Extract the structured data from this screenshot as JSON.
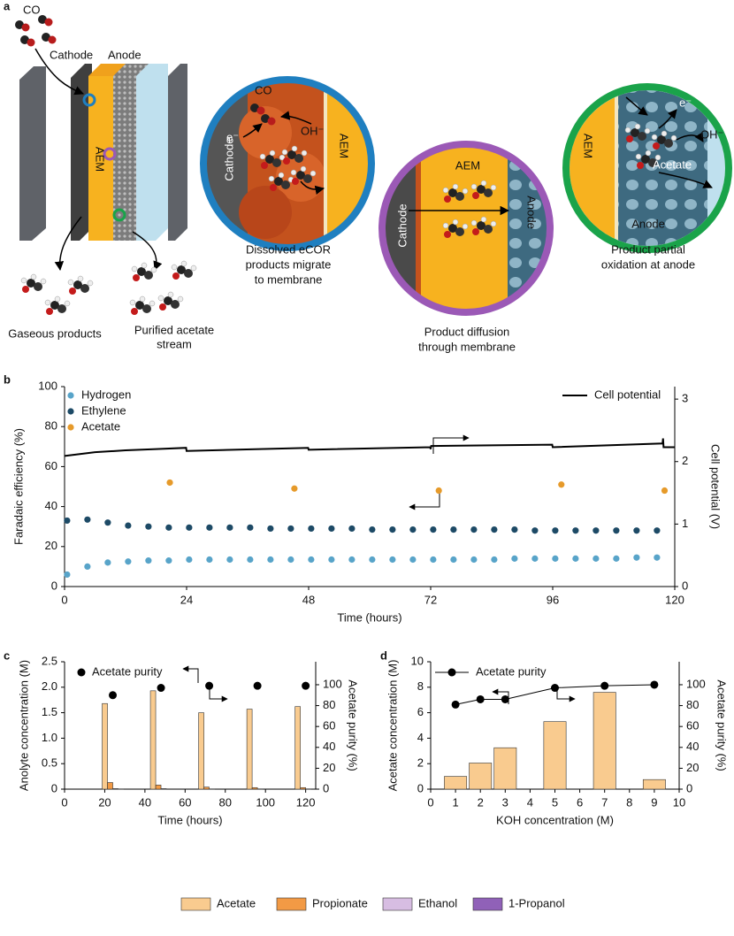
{
  "diagram": {
    "panel_label": "a",
    "molecule": "CO",
    "cathode": "Cathode",
    "anode": "Anode",
    "membrane": "AEM",
    "gas_output": "Gaseous products",
    "liquid_output": [
      "Purified acetate",
      "stream"
    ],
    "insets": [
      {
        "labels": [
          "CO",
          "Cathode",
          "e⁻",
          "OH⁻",
          "AEM"
        ],
        "caption": [
          "Dissolved eCOR",
          "products migrate",
          "to membrane"
        ]
      },
      {
        "labels": [
          "AEM",
          "Cathode",
          "Anode"
        ],
        "caption": [
          "Product diffusion",
          "through membrane"
        ]
      },
      {
        "labels": [
          "AEM",
          "e⁻",
          "OH⁻",
          "Acetate",
          "Anode"
        ],
        "caption": [
          "Product partial",
          "oxidation at anode"
        ]
      }
    ]
  },
  "chart_data": [
    {
      "type": "scatter",
      "panel_label": "b",
      "xlabel": "Time (hours)",
      "ylabel": "Faradaic efficiency (%)",
      "y2label": "Cell potential (V)",
      "xlim": [
        0,
        120
      ],
      "xticks": [
        0,
        24,
        48,
        72,
        96,
        120
      ],
      "ylim": [
        0,
        100
      ],
      "yticks": [
        0,
        20,
        40,
        60,
        80,
        100
      ],
      "y2lim": [
        0,
        3.2
      ],
      "y2ticks": [
        0,
        1,
        2,
        3
      ],
      "series": [
        {
          "name": "Hydrogen",
          "color": "#58a4c9",
          "x": [
            0.5,
            4.5,
            8.5,
            12.5,
            16.5,
            20.5,
            24.5,
            28.5,
            32.5,
            36.5,
            40.5,
            44.5,
            48.5,
            52.5,
            56.5,
            60.5,
            64.5,
            68.5,
            72.5,
            76.5,
            80.5,
            84.5,
            88.5,
            92.5,
            96.5,
            100.5,
            104.5,
            108.5,
            112.5,
            116.5
          ],
          "values": [
            6,
            10,
            12,
            12.5,
            13,
            13,
            13.5,
            13.5,
            13.5,
            13.5,
            13.5,
            13.5,
            13.5,
            13.5,
            13.5,
            13.5,
            13.5,
            13.5,
            13.5,
            13.5,
            13.5,
            13.5,
            14,
            14,
            14,
            14,
            14,
            14,
            14.5,
            14.5
          ]
        },
        {
          "name": "Ethylene",
          "color": "#1d4a66",
          "x": [
            0.5,
            4.5,
            8.5,
            12.5,
            16.5,
            20.5,
            24.5,
            28.5,
            32.5,
            36.5,
            40.5,
            44.5,
            48.5,
            52.5,
            56.5,
            60.5,
            64.5,
            68.5,
            72.5,
            76.5,
            80.5,
            84.5,
            88.5,
            92.5,
            96.5,
            100.5,
            104.5,
            108.5,
            112.5,
            116.5
          ],
          "values": [
            33,
            33.5,
            32,
            30.5,
            30,
            29.5,
            29.5,
            29.5,
            29.5,
            29.5,
            29,
            29,
            29,
            29,
            29,
            28.5,
            28.5,
            28.5,
            28.5,
            28.5,
            28.5,
            28.5,
            28.5,
            28,
            28,
            28,
            28,
            28,
            28,
            28
          ]
        },
        {
          "name": "Acetate",
          "color": "#e69a2a",
          "x": [
            20.7,
            45.2,
            73.6,
            97.7,
            118
          ],
          "values": [
            52,
            49,
            48,
            51,
            48
          ]
        },
        {
          "name": "Cell potential",
          "type": "line",
          "axis": "y2",
          "color": "#000000",
          "x": [
            0,
            6,
            12,
            18,
            23.9,
            24,
            47.9,
            48,
            71.9,
            72,
            72.1,
            95.9,
            96,
            117.6,
            117.7,
            117.8,
            120
          ],
          "values": [
            2.09,
            2.15,
            2.18,
            2.2,
            2.22,
            2.17,
            2.22,
            2.19,
            2.23,
            2.2,
            2.25,
            2.27,
            2.23,
            2.29,
            2.37,
            2.23,
            2.23
          ]
        }
      ]
    },
    {
      "type": "bar",
      "panel_label": "c",
      "xlabel": "Time (hours)",
      "ylabel": "Anolyte concentration (M)",
      "y2label": "Acetate purity (%)",
      "xlim": [
        0,
        125
      ],
      "xticks": [
        0,
        20,
        40,
        60,
        80,
        100,
        120
      ],
      "ylim": [
        0,
        2.5
      ],
      "yticks": [
        0,
        0.5,
        {
          "value": 1,
          "label": "1.0"
        },
        1.5,
        {
          "value": 2,
          "label": "2.0"
        },
        2.5
      ],
      "y2lim": [
        0,
        122
      ],
      "y2ticks": [
        0,
        20,
        40,
        60,
        80,
        100
      ],
      "x": [
        24,
        48,
        72,
        96,
        120
      ],
      "series": [
        {
          "name": "Acetate",
          "color": "#f9cb8f",
          "values": [
            1.68,
            1.93,
            1.5,
            1.57,
            1.62
          ]
        },
        {
          "name": "Propionate",
          "color": "#f29a45",
          "values": [
            0.13,
            0.08,
            0.04,
            0.03,
            0.03
          ]
        },
        {
          "name": "Ethanol",
          "color": "#d7bde2",
          "values": [
            0.01,
            0.01,
            0.005,
            0.005,
            0.005
          ]
        },
        {
          "name": "1-Propanol",
          "color": "#9061b8",
          "values": [
            0.005,
            0,
            0,
            0,
            0
          ]
        },
        {
          "name": "Acetate purity",
          "type": "scatter",
          "axis": "y2",
          "color": "#000000",
          "values": [
            90,
            97,
            99,
            99,
            99
          ]
        }
      ]
    },
    {
      "type": "bar",
      "panel_label": "d",
      "xlabel": "KOH concentration (M)",
      "ylabel": "Acetate concentration (M)",
      "y2label": "Acetate purity (%)",
      "xlim": [
        0,
        10
      ],
      "xticks": [
        0,
        1,
        2,
        3,
        4,
        5,
        6,
        7,
        8,
        9,
        10
      ],
      "ylim": [
        0,
        10
      ],
      "yticks": [
        0,
        2,
        4,
        6,
        8,
        10
      ],
      "y2lim": [
        0,
        122
      ],
      "y2ticks": [
        0,
        20,
        40,
        60,
        80,
        100
      ],
      "x": [
        1,
        2,
        3,
        5,
        7,
        9
      ],
      "series": [
        {
          "color": "#f9cb8f",
          "values": [
            1,
            2.05,
            3.25,
            5.3,
            7.6,
            0.75
          ]
        },
        {
          "name": "Acetate purity",
          "type": "line",
          "markers": true,
          "axis": "y2",
          "color": "#000000",
          "values": [
            81,
            86,
            86,
            97,
            99,
            100
          ]
        }
      ]
    }
  ]
}
